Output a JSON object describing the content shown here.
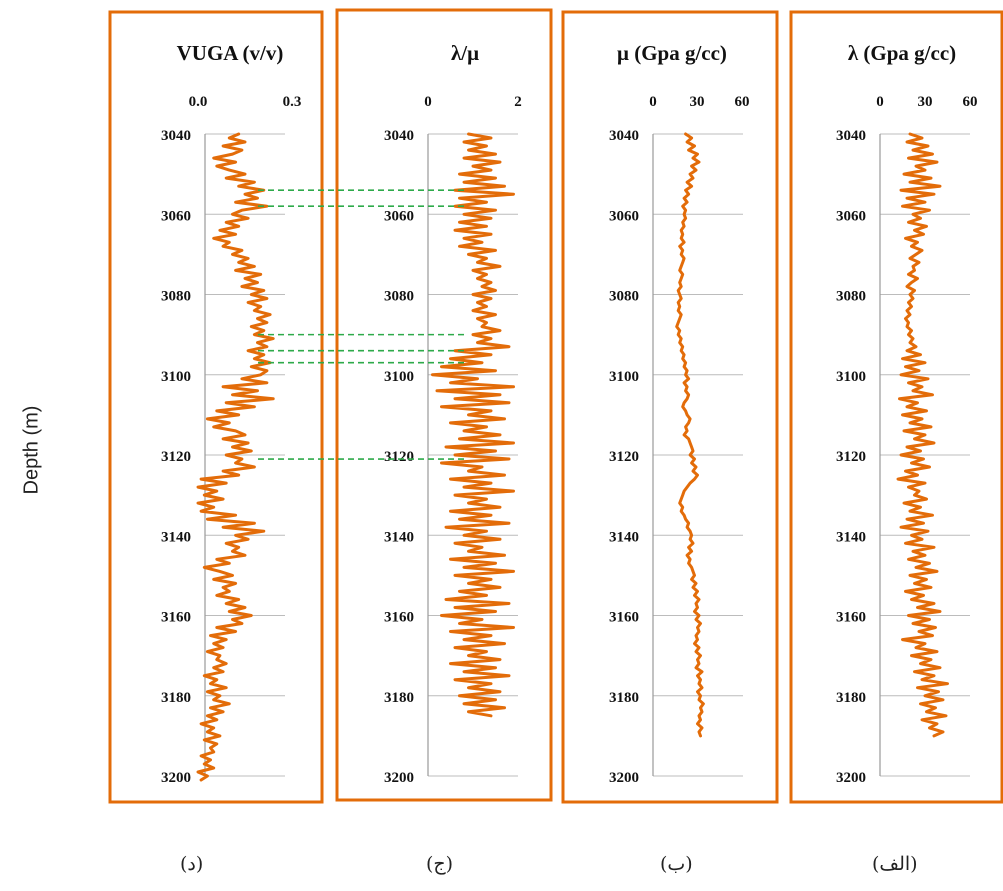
{
  "figure": {
    "ylabel": "Depth (m)",
    "line_color": "#E36C09",
    "frame_color": "#E36C09",
    "corr_color": "#2EAA4A",
    "depth_range": [
      3040,
      3200
    ],
    "depth_ticks": [
      "3040",
      "3060",
      "3080",
      "3100",
      "3120",
      "3140",
      "3160",
      "3180",
      "3200"
    ],
    "captions": [
      "(د)",
      "(ج)",
      "(ب)",
      "(الف)"
    ],
    "correlation_depths": [
      3054,
      3058,
      3090,
      3094,
      3097,
      3121
    ]
  },
  "chart_data": [
    {
      "type": "line",
      "title": "VUGA (v/v)",
      "ylabel": "Depth (m)",
      "xlim": [
        0.0,
        0.3
      ],
      "xticks": [
        "0.0",
        "0.3"
      ],
      "depth_start": 3040,
      "depth_step": 1,
      "values": [
        0.13,
        0.1,
        0.15,
        0.08,
        0.14,
        0.11,
        0.05,
        0.12,
        0.06,
        0.1,
        0.15,
        0.09,
        0.18,
        0.13,
        0.21,
        0.15,
        0.19,
        0.12,
        0.22,
        0.14,
        0.11,
        0.16,
        0.09,
        0.13,
        0.07,
        0.12,
        0.05,
        0.1,
        0.08,
        0.14,
        0.11,
        0.16,
        0.13,
        0.18,
        0.12,
        0.2,
        0.15,
        0.19,
        0.14,
        0.21,
        0.17,
        0.22,
        0.16,
        0.2,
        0.18,
        0.23,
        0.19,
        0.22,
        0.17,
        0.21,
        0.18,
        0.24,
        0.19,
        0.22,
        0.16,
        0.21,
        0.18,
        0.23,
        0.17,
        0.22,
        0.2,
        0.14,
        0.22,
        0.08,
        0.19,
        0.11,
        0.24,
        0.09,
        0.18,
        0.06,
        0.13,
        0.03,
        0.1,
        0.05,
        0.12,
        0.15,
        0.08,
        0.16,
        0.11,
        0.17,
        0.09,
        0.14,
        0.12,
        0.18,
        0.08,
        0.13,
        0.01,
        0.09,
        0.0,
        0.06,
        0.02,
        0.08,
        0.0,
        0.05,
        0.01,
        0.12,
        0.03,
        0.18,
        0.08,
        0.21,
        0.12,
        0.16,
        0.09,
        0.13,
        0.11,
        0.15,
        0.06,
        0.1,
        0.02,
        0.07,
        0.11,
        0.05,
        0.12,
        0.08,
        0.1,
        0.06,
        0.13,
        0.09,
        0.15,
        0.1,
        0.17,
        0.11,
        0.14,
        0.06,
        0.12,
        0.04,
        0.09,
        0.05,
        0.08,
        0.03,
        0.07,
        0.06,
        0.09,
        0.05,
        0.08,
        0.02,
        0.06,
        0.04,
        0.09,
        0.03,
        0.07,
        0.05,
        0.1,
        0.04,
        0.08,
        0.03,
        0.06,
        0.01,
        0.05,
        0.03,
        0.07,
        0.02,
        0.06,
        0.04,
        0.05,
        0.01,
        0.04,
        0.02,
        0.05,
        0.0,
        0.03,
        0.01
      ]
    },
    {
      "type": "line",
      "title": "λ/μ",
      "ylabel": "",
      "xlim": [
        0,
        2
      ],
      "xticks": [
        "0",
        "2"
      ],
      "depth_start": 3040,
      "depth_step": 1,
      "values": [
        0.9,
        1.4,
        0.8,
        1.3,
        0.9,
        1.5,
        0.8,
        1.6,
        1.0,
        1.4,
        0.7,
        1.5,
        0.8,
        1.7,
        0.6,
        1.9,
        0.7,
        1.3,
        0.6,
        1.5,
        0.8,
        1.4,
        0.7,
        1.3,
        0.6,
        1.4,
        0.8,
        1.2,
        0.7,
        1.5,
        0.9,
        1.3,
        1.1,
        1.6,
        1.0,
        1.3,
        1.1,
        1.4,
        1.2,
        1.5,
        1.0,
        1.4,
        1.1,
        1.3,
        1.0,
        1.5,
        1.1,
        1.3,
        1.2,
        1.6,
        1.0,
        1.4,
        1.1,
        1.8,
        0.6,
        1.4,
        0.5,
        1.2,
        0.3,
        1.5,
        0.1,
        1.1,
        0.5,
        1.9,
        0.2,
        1.6,
        0.6,
        1.8,
        0.3,
        1.4,
        0.9,
        1.7,
        0.5,
        1.3,
        0.8,
        1.6,
        0.7,
        1.9,
        0.4,
        1.5,
        0.6,
        1.8,
        0.3,
        1.2,
        0.9,
        1.7,
        0.5,
        1.4,
        0.8,
        1.9,
        0.6,
        1.3,
        0.9,
        1.6,
        0.5,
        1.4,
        0.7,
        1.8,
        0.4,
        1.3,
        0.8,
        1.6,
        0.6,
        1.2,
        0.9,
        1.7,
        0.5,
        1.5,
        0.8,
        1.9,
        0.6,
        1.4,
        0.9,
        1.6,
        0.7,
        1.3,
        0.4,
        1.8,
        0.6,
        1.5,
        0.3,
        1.2,
        0.7,
        1.9,
        0.5,
        1.4,
        0.8,
        1.7,
        0.6,
        1.3,
        0.9,
        1.6,
        0.5,
        1.5,
        0.8,
        1.8,
        0.6,
        1.4,
        0.9,
        1.6,
        0.7,
        1.5,
        0.8,
        1.7,
        0.9,
        1.4
      ]
    },
    {
      "type": "line",
      "title": "μ (Gpa g/cc)",
      "ylabel": "",
      "xlim": [
        0,
        60
      ],
      "xticks": [
        "0",
        "30",
        "60"
      ],
      "depth_start": 3040,
      "depth_step": 1,
      "values": [
        22,
        26,
        23,
        28,
        24,
        30,
        27,
        31,
        26,
        29,
        25,
        27,
        23,
        26,
        22,
        24,
        21,
        23,
        20,
        22,
        21,
        22,
        20,
        21,
        19,
        20,
        19,
        21,
        18,
        20,
        19,
        21,
        20,
        19,
        18,
        20,
        19,
        18,
        19,
        17,
        18,
        19,
        17,
        18,
        17,
        19,
        18,
        17,
        16,
        18,
        17,
        19,
        18,
        20,
        19,
        21,
        20,
        22,
        21,
        23,
        22,
        24,
        21,
        23,
        22,
        24,
        23,
        21,
        20,
        22,
        23,
        25,
        24,
        22,
        23,
        21,
        24,
        25,
        26,
        27,
        25,
        28,
        26,
        29,
        27,
        30,
        28,
        25,
        23,
        21,
        20,
        19,
        18,
        20,
        19,
        21,
        22,
        24,
        23,
        25,
        26,
        25,
        27,
        24,
        26,
        23,
        25,
        24,
        26,
        27,
        28,
        26,
        29,
        27,
        30,
        28,
        31,
        29,
        30,
        28,
        31,
        29,
        32,
        30,
        31,
        29,
        30,
        28,
        31,
        29,
        32,
        30,
        31,
        29,
        33,
        30,
        32,
        31,
        33,
        30,
        32,
        31,
        34,
        32,
        33,
        31,
        32,
        30,
        33,
        31,
        32
      ]
    },
    {
      "type": "line",
      "title": "λ (Gpa g/cc)",
      "ylabel": "",
      "xlim": [
        0,
        60
      ],
      "xticks": [
        "0",
        "30",
        "60"
      ],
      "depth_start": 3040,
      "depth_step": 1,
      "values": [
        20,
        28,
        18,
        32,
        22,
        35,
        19,
        38,
        24,
        30,
        16,
        34,
        20,
        40,
        14,
        36,
        18,
        30,
        15,
        33,
        22,
        27,
        19,
        31,
        23,
        29,
        17,
        25,
        21,
        28,
        24,
        20,
        26,
        22,
        23,
        19,
        25,
        21,
        18,
        23,
        20,
        22,
        19,
        21,
        18,
        20,
        17,
        19,
        18,
        21,
        19,
        22,
        20,
        24,
        18,
        27,
        15,
        30,
        17,
        26,
        14,
        32,
        19,
        28,
        22,
        35,
        13,
        25,
        18,
        31,
        15,
        28,
        20,
        34,
        16,
        30,
        23,
        36,
        18,
        27,
        14,
        29,
        21,
        33,
        17,
        25,
        12,
        30,
        19,
        26,
        23,
        31,
        16,
        27,
        20,
        35,
        18,
        29,
        14,
        32,
        21,
        28,
        17,
        36,
        22,
        30,
        19,
        33,
        24,
        38,
        20,
        31,
        23,
        34,
        17,
        29,
        21,
        36,
        25,
        40,
        19,
        33,
        22,
        37,
        26,
        35,
        15,
        30,
        24,
        38,
        21,
        34,
        27,
        40,
        23,
        36,
        28,
        45,
        25,
        39,
        30,
        42,
        27,
        37,
        31,
        44,
        28,
        38,
        33,
        42,
        36
      ]
    }
  ]
}
